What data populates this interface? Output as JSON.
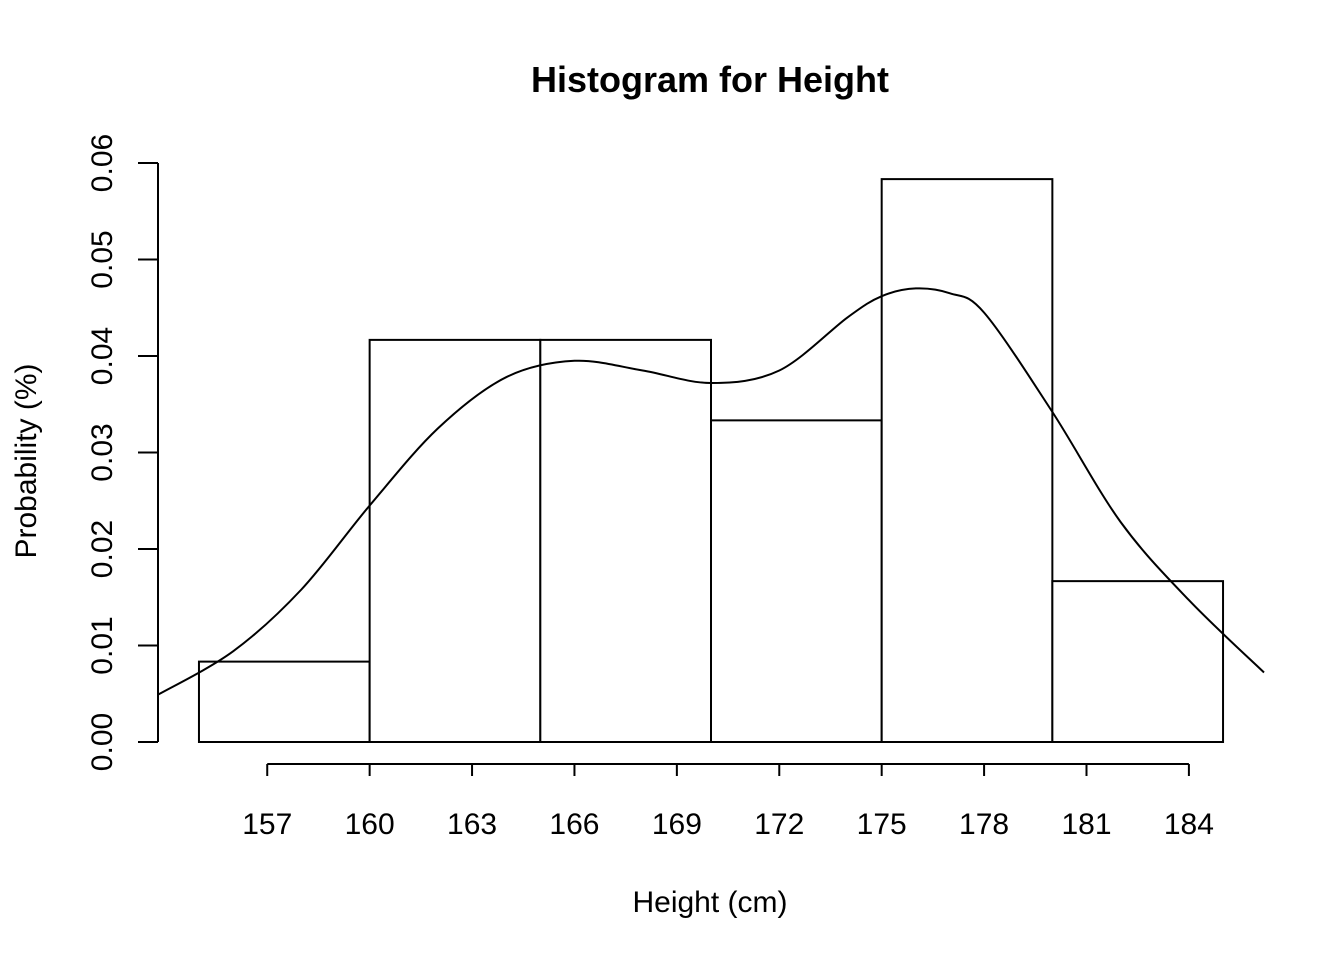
{
  "chart_data": {
    "type": "bar",
    "title": "Histogram for Height",
    "xlabel": "Height (cm)",
    "ylabel": "Probability (%)",
    "bins": [
      {
        "from": 155,
        "to": 160,
        "value": 0.00833
      },
      {
        "from": 160,
        "to": 165,
        "value": 0.04167
      },
      {
        "from": 165,
        "to": 170,
        "value": 0.04167
      },
      {
        "from": 170,
        "to": 175,
        "value": 0.03333
      },
      {
        "from": 175,
        "to": 180,
        "value": 0.05833
      },
      {
        "from": 180,
        "to": 185,
        "value": 0.01667
      }
    ],
    "x_ticks": [
      157,
      160,
      163,
      166,
      169,
      172,
      175,
      178,
      181,
      184
    ],
    "y_ticks": [
      "0.00",
      "0.01",
      "0.02",
      "0.03",
      "0.04",
      "0.05",
      "0.06"
    ],
    "xlim": [
      153.8,
      186.2
    ],
    "ylim": [
      0,
      0.06
    ],
    "density_curve": {
      "x": [
        153.8,
        156,
        158,
        160,
        162,
        164,
        166,
        168,
        170,
        172,
        174,
        175,
        176,
        177,
        178,
        180,
        182,
        184,
        186.2
      ],
      "y": [
        0.0049,
        0.0094,
        0.0158,
        0.0245,
        0.0325,
        0.0378,
        0.0395,
        0.0385,
        0.0372,
        0.0385,
        0.044,
        0.0462,
        0.047,
        0.0465,
        0.0445,
        0.0342,
        0.0228,
        0.0147,
        0.0072
      ]
    }
  }
}
